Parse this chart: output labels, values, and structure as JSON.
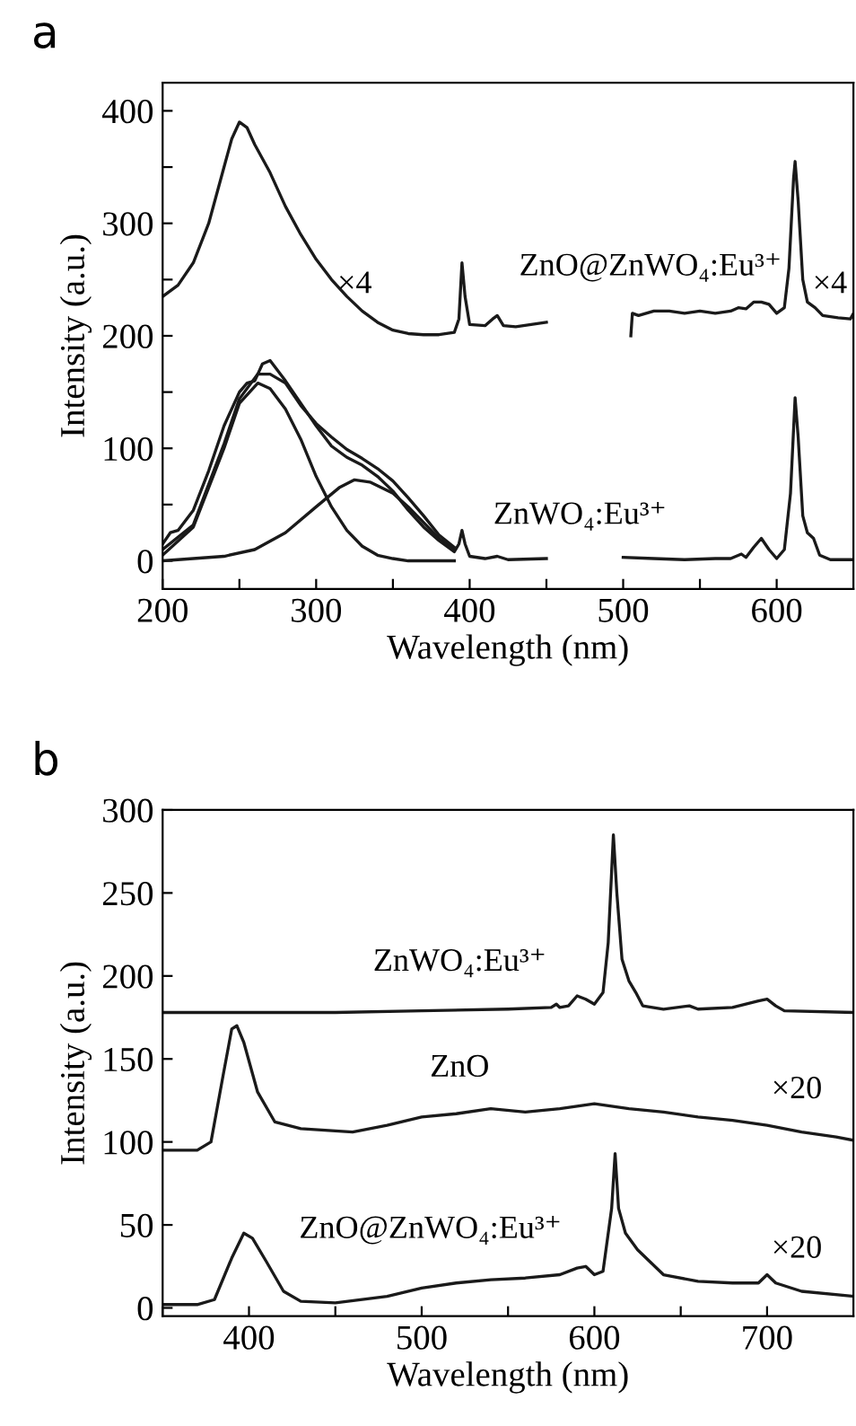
{
  "chart_data": [
    {
      "type": "line",
      "title": "a",
      "xlabel": "Wavelength (nm)",
      "ylabel": "Intensity (a.u.)",
      "xlim": [
        200,
        650
      ],
      "ylim": [
        -25,
        425
      ],
      "xticks": [
        200,
        {
          "value": 250,
          "label": null
        },
        300,
        {
          "value": 350,
          "label": null
        },
        400,
        {
          "value": 450,
          "label": null
        },
        500,
        {
          "value": 550,
          "label": null
        },
        600
      ],
      "yticks": [
        0,
        {
          "value": 50,
          "label": null
        },
        100,
        {
          "value": 150,
          "label": null
        },
        200,
        {
          "value": 250,
          "label": null
        },
        300,
        {
          "value": 350,
          "label": null
        },
        400
      ],
      "grid": false,
      "legend": false,
      "marker": "none",
      "line_style": "solid",
      "series": [
        {
          "color": "#1a1a1a",
          "x": [
            200,
            210,
            220,
            230,
            240,
            245,
            250,
            255,
            260,
            270,
            280,
            290,
            300,
            310,
            320,
            330,
            340,
            350,
            360,
            370,
            380,
            390,
            393,
            395,
            397,
            400,
            410,
            415,
            418,
            422,
            430,
            450,
            475,
            505,
            506,
            510,
            520,
            530,
            540,
            550,
            560,
            570,
            575,
            580,
            585,
            590,
            595,
            600,
            605,
            608,
            611,
            612,
            614,
            617,
            620,
            625,
            630,
            640,
            648,
            650
          ],
          "values": [
            235,
            245,
            265,
            300,
            350,
            375,
            390,
            385,
            370,
            345,
            315,
            290,
            268,
            250,
            235,
            222,
            212,
            205,
            202,
            201,
            201,
            203,
            215,
            265,
            235,
            210,
            209,
            215,
            218,
            209,
            208,
            212,
            null,
            200,
            220,
            218,
            222,
            222,
            220,
            222,
            220,
            222,
            225,
            224,
            230,
            230,
            228,
            220,
            225,
            260,
            340,
            355,
            320,
            250,
            230,
            225,
            218,
            216,
            215,
            220
          ]
        },
        {
          "color": "#1a1a1a",
          "x": [
            200,
            205,
            210,
            220,
            230,
            240,
            250,
            255,
            260,
            265,
            270,
            280,
            290,
            300,
            310,
            320,
            330,
            340,
            350,
            360,
            370,
            380,
            390,
            393,
            395,
            397,
            400,
            410,
            418,
            425,
            450,
            475,
            500,
            520,
            540,
            560,
            570,
            577,
            580,
            585,
            590,
            595,
            600,
            605,
            609,
            612,
            614,
            617,
            620,
            624,
            628,
            635,
            650
          ],
          "values": [
            15,
            25,
            27,
            45,
            80,
            120,
            150,
            158,
            160,
            175,
            178,
            160,
            140,
            120,
            102,
            92,
            85,
            75,
            62,
            45,
            30,
            18,
            8,
            15,
            27,
            15,
            4,
            2,
            4,
            1,
            2,
            null,
            3,
            2,
            1,
            2,
            2,
            6,
            3,
            12,
            20,
            10,
            2,
            10,
            60,
            145,
            110,
            40,
            25,
            20,
            5,
            1,
            1
          ]
        },
        {
          "color": "#1a1a1a",
          "x": [
            200,
            220,
            240,
            250,
            262,
            270,
            280,
            290,
            300,
            310,
            320,
            330,
            340,
            350,
            360,
            390
          ],
          "values": [
            5,
            30,
            100,
            140,
            158,
            153,
            135,
            108,
            75,
            48,
            27,
            13,
            5,
            2,
            0,
            0
          ]
        },
        {
          "color": "#1a1a1a",
          "x": [
            200,
            240,
            260,
            280,
            300,
            315,
            325,
            335,
            350,
            360,
            370,
            380,
            390
          ],
          "values": [
            0,
            4,
            10,
            25,
            48,
            65,
            72,
            70,
            60,
            48,
            34,
            20,
            10
          ]
        },
        {
          "color": "#1a1a1a",
          "x": [
            200,
            220,
            240,
            250,
            262,
            270,
            280,
            290,
            300,
            310,
            320,
            330,
            340,
            350,
            360,
            370,
            380,
            390
          ],
          "values": [
            10,
            32,
            104,
            144,
            166,
            166,
            158,
            138,
            122,
            110,
            99,
            91,
            82,
            71,
            56,
            40,
            23,
            12
          ]
        }
      ],
      "annotations": [
        "×4",
        "ZnO@ZnWO₄:Eu³⁺",
        "×4",
        "ZnWO₄:Eu³⁺"
      ]
    },
    {
      "type": "line",
      "title": "b",
      "xlabel": "Wavelength (nm)",
      "ylabel": "Intensity (a.u.)",
      "xlim": [
        350,
        750
      ],
      "ylim": [
        -5,
        300
      ],
      "xticks": [
        {
          "value": 350,
          "label": null
        },
        400,
        {
          "value": 450,
          "label": null
        },
        500,
        {
          "value": 550,
          "label": null
        },
        600,
        {
          "value": 650,
          "label": null
        },
        700
      ],
      "yticks": [
        0,
        50,
        100,
        150,
        200,
        250,
        300
      ],
      "grid": false,
      "legend": false,
      "marker": "none",
      "line_style": "solid",
      "series": [
        {
          "color": "#1a1a1a",
          "x": [
            350,
            400,
            450,
            500,
            550,
            575,
            578,
            580,
            585,
            590,
            595,
            600,
            605,
            608,
            611,
            613,
            616,
            620,
            624,
            628,
            640,
            655,
            660,
            680,
            695,
            700,
            705,
            710,
            750
          ],
          "values": [
            178,
            178,
            178,
            179,
            180,
            181,
            183,
            181,
            182,
            188,
            186,
            183,
            190,
            220,
            285,
            250,
            210,
            197,
            190,
            182,
            180,
            182,
            180,
            181,
            185,
            186,
            182,
            179,
            178
          ]
        },
        {
          "color": "#1a1a1a",
          "x": [
            350,
            370,
            378,
            385,
            390,
            393,
            397,
            405,
            415,
            430,
            460,
            480,
            500,
            520,
            540,
            560,
            580,
            600,
            620,
            640,
            660,
            680,
            700,
            720,
            740,
            750
          ],
          "values": [
            95,
            95,
            100,
            140,
            168,
            170,
            160,
            130,
            112,
            108,
            106,
            110,
            115,
            117,
            120,
            118,
            120,
            123,
            120,
            118,
            115,
            113,
            110,
            106,
            103,
            101
          ]
        },
        {
          "color": "#1a1a1a",
          "x": [
            350,
            370,
            380,
            390,
            397,
            402,
            410,
            420,
            430,
            450,
            480,
            500,
            520,
            540,
            560,
            580,
            590,
            595,
            600,
            605,
            610,
            612,
            614,
            618,
            625,
            640,
            660,
            680,
            695,
            700,
            705,
            720,
            750
          ],
          "values": [
            2,
            2,
            5,
            30,
            45,
            42,
            28,
            10,
            4,
            3,
            7,
            12,
            15,
            17,
            18,
            20,
            24,
            25,
            20,
            22,
            60,
            93,
            60,
            45,
            35,
            20,
            16,
            15,
            15,
            20,
            15,
            10,
            7
          ]
        }
      ],
      "annotations": [
        "ZnWO₄:Eu³⁺",
        "ZnO",
        "×20",
        "ZnO@ZnWO₄:Eu³⁺",
        "×20"
      ]
    }
  ]
}
